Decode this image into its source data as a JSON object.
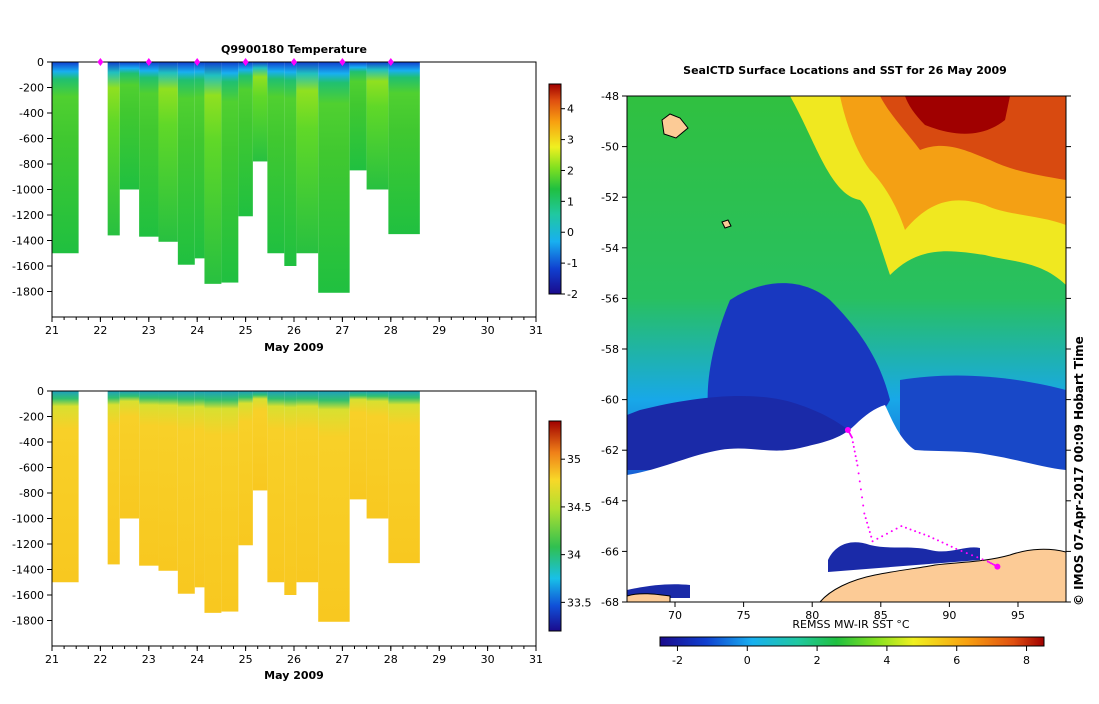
{
  "chart_data": [
    {
      "type": "heatmap",
      "name": "temperature-section",
      "title": "Q9900180  Temperature",
      "xlabel": "May 2009",
      "ylabel": "",
      "xlim": [
        21,
        31
      ],
      "ylim": [
        -2000,
        0
      ],
      "x_ticks": [
        "21",
        "22",
        "23",
        "24",
        "25",
        "26",
        "27",
        "28",
        "29",
        "30",
        "31"
      ],
      "y_ticks": [
        "0",
        "-200",
        "-400",
        "-600",
        "-800",
        "-1000",
        "-1200",
        "-1400",
        "-1600",
        "-1800"
      ],
      "colorbar_ticks": [
        "4",
        "3",
        "2",
        "1",
        "0",
        "-1",
        "-2"
      ],
      "colorbar_range": [
        -2,
        4.8
      ],
      "profile_markers_days": [
        22,
        23,
        24,
        25,
        26,
        27,
        28
      ],
      "profiles": [
        {
          "start": 21.0,
          "end": 21.55,
          "depth": 1500
        },
        {
          "start": 22.15,
          "end": 22.4,
          "depth": 1360
        },
        {
          "start": 22.4,
          "end": 22.8,
          "depth": 1000
        },
        {
          "start": 22.8,
          "end": 23.2,
          "depth": 1370
        },
        {
          "start": 23.2,
          "end": 23.6,
          "depth": 1410
        },
        {
          "start": 23.6,
          "end": 23.95,
          "depth": 1590
        },
        {
          "start": 23.95,
          "end": 24.15,
          "depth": 1540
        },
        {
          "start": 24.15,
          "end": 24.5,
          "depth": 1740
        },
        {
          "start": 24.5,
          "end": 24.85,
          "depth": 1730
        },
        {
          "start": 24.85,
          "end": 25.15,
          "depth": 1210
        },
        {
          "start": 25.15,
          "end": 25.45,
          "depth": 780
        },
        {
          "start": 25.45,
          "end": 25.8,
          "depth": 1500
        },
        {
          "start": 25.8,
          "end": 26.05,
          "depth": 1600
        },
        {
          "start": 26.05,
          "end": 26.5,
          "depth": 1500
        },
        {
          "start": 26.5,
          "end": 27.15,
          "depth": 1810
        },
        {
          "start": 27.15,
          "end": 27.5,
          "depth": 850
        },
        {
          "start": 27.5,
          "end": 27.95,
          "depth": 1000
        },
        {
          "start": 27.95,
          "end": 28.6,
          "depth": 1350
        }
      ]
    },
    {
      "type": "heatmap",
      "name": "salinity-section",
      "title": "",
      "xlabel": "May 2009",
      "ylabel": "",
      "xlim": [
        21,
        31
      ],
      "ylim": [
        -2000,
        0
      ],
      "x_ticks": [
        "21",
        "22",
        "23",
        "24",
        "25",
        "26",
        "27",
        "28",
        "29",
        "30",
        "31"
      ],
      "y_ticks": [
        "0",
        "-200",
        "-400",
        "-600",
        "-800",
        "-1000",
        "-1200",
        "-1400",
        "-1600",
        "-1800"
      ],
      "colorbar_ticks": [
        "35",
        "34.5",
        "34",
        "33.5"
      ],
      "colorbar_range": [
        33.2,
        35.4
      ]
    },
    {
      "type": "heatmap",
      "name": "sst-map",
      "title": "SealCTD Surface Locations and SST for 26 May 2009",
      "xlabel": "",
      "ylabel": "",
      "xlim": [
        66.5,
        98.5
      ],
      "ylim": [
        -68,
        -48
      ],
      "x_ticks": [
        "70",
        "75",
        "80",
        "85",
        "90",
        "95"
      ],
      "y_ticks": [
        "-48",
        "-50",
        "-52",
        "-54",
        "-56",
        "-58",
        "-60",
        "-62",
        "-64",
        "-66",
        "-68"
      ],
      "colorbar_label": "REMSS MW-IR SST °C",
      "colorbar_ticks": [
        "-2",
        "0",
        "2",
        "4",
        "6",
        "8"
      ],
      "colorbar_range": [
        -2.5,
        8.5
      ],
      "seal_track": [
        [
          82.6,
          -61.2
        ],
        [
          82.9,
          -61.5
        ],
        [
          83.3,
          -62.6
        ],
        [
          83.8,
          -64.5
        ],
        [
          84.4,
          -65.6
        ],
        [
          86.5,
          -65.0
        ],
        [
          88.5,
          -65.4
        ],
        [
          90.5,
          -65.9
        ],
        [
          92.8,
          -66.4
        ],
        [
          93.5,
          -66.6
        ]
      ]
    }
  ],
  "credit": "© IMOS 07-Apr-2017 00:09 Hobart Time",
  "colors": {
    "land": "#fccb96",
    "ice": "#ffffff",
    "marker": "#ff00ff",
    "axis": "#000000"
  }
}
